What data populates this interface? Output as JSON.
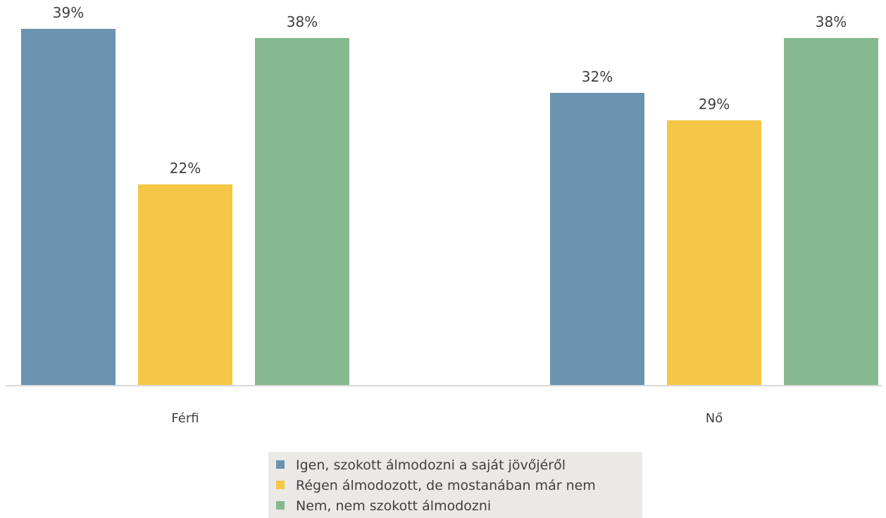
{
  "chart_data": {
    "type": "bar",
    "categories": [
      "Férfi",
      "Nő"
    ],
    "series": [
      {
        "name": "Igen, szokott álmodozni a saját jövőjéről",
        "color": "#6a93b0",
        "values": [
          39,
          32
        ],
        "labels": [
          "39%",
          "32%"
        ]
      },
      {
        "name": "Régen álmodozott, de mostanában már nem",
        "color": "#f5c746",
        "values": [
          22,
          29
        ],
        "labels": [
          "22%",
          "29%"
        ]
      },
      {
        "name": "Nem, nem szokott álmodozni",
        "color": "#86b98e",
        "values": [
          38,
          38
        ],
        "labels": [
          "38%",
          "38%"
        ]
      }
    ],
    "ylim": [
      0,
      40
    ],
    "unit": "%",
    "grid": false,
    "legend_position": "bottom-center",
    "legend_background": "#ebe9e6",
    "axis_color": "#d9d9d9"
  }
}
